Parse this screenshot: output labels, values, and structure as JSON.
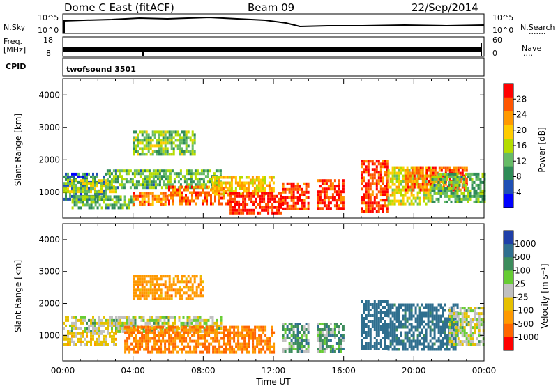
{
  "header": {
    "station": "Dome C East (fitACF)",
    "beam": "Beam 09",
    "date": "22/Sep/2014"
  },
  "status_panels": {
    "nsky": {
      "label": "N.Sky",
      "top_tick": "10^5",
      "bottom_tick": "10^0"
    },
    "nsearch": {
      "label": "N.Search",
      "top_tick": "10^5",
      "bottom_tick": "10^0"
    },
    "freq": {
      "label_1": "Freq.",
      "label_2": "[MHz]",
      "top_tick": "18",
      "bottom_tick": "8"
    },
    "nave": {
      "label": "Nave",
      "top_tick": "60",
      "bottom_tick": "0"
    },
    "cpid": {
      "label": "CPID",
      "value": "twofsound 3501"
    }
  },
  "colors": {
    "power_scale": [
      "#0000ff",
      "#1e4fb4",
      "#2e8b57",
      "#66bb66",
      "#b4dc00",
      "#ffcc00",
      "#ff9900",
      "#ff5500",
      "#ff0000"
    ],
    "velocity_scale": [
      "#1f3fa8",
      "#2f6f8f",
      "#3c8c5c",
      "#66cc33",
      "#c0c0c0",
      "#e6c000",
      "#ff9900",
      "#ff6600",
      "#ff0000"
    ]
  },
  "chart_data": [
    {
      "type": "heatmap",
      "quantity": "power",
      "ylabel": "Slant Range [km]",
      "yticks": [
        1000,
        2000,
        3000,
        4000
      ],
      "ylim": [
        200,
        4500
      ],
      "xlim": [
        0,
        24
      ],
      "colorbar": {
        "label": "Power [dB]",
        "ticks": [
          "4",
          "8",
          "12",
          "16",
          "20",
          "24",
          "28"
        ],
        "range": [
          0,
          32
        ]
      },
      "regions": [
        {
          "t0": 0.0,
          "t1": 2.5,
          "r0": 800,
          "r1": 1600,
          "v": 8
        },
        {
          "t0": 0.0,
          "t1": 3.0,
          "r0": 1000,
          "r1": 1400,
          "v": 16
        },
        {
          "t0": 0.5,
          "t1": 4.0,
          "r0": 500,
          "r1": 900,
          "v": 12
        },
        {
          "t0": 2.5,
          "t1": 9.0,
          "r0": 1100,
          "r1": 1700,
          "v": 12
        },
        {
          "t0": 4.0,
          "t1": 7.5,
          "r0": 2200,
          "r1": 2900,
          "v": 14
        },
        {
          "t0": 4.0,
          "t1": 6.0,
          "r0": 600,
          "r1": 1000,
          "v": 24
        },
        {
          "t0": 6.0,
          "t1": 9.5,
          "r0": 600,
          "r1": 1200,
          "v": 26
        },
        {
          "t0": 8.5,
          "t1": 12.0,
          "r0": 900,
          "r1": 1500,
          "v": 20
        },
        {
          "t0": 9.5,
          "t1": 12.5,
          "r0": 350,
          "r1": 1000,
          "v": 30
        },
        {
          "t0": 12.5,
          "t1": 14.0,
          "r0": 500,
          "r1": 1300,
          "v": 28
        },
        {
          "t0": 14.5,
          "t1": 16.0,
          "r0": 500,
          "r1": 1400,
          "v": 28
        },
        {
          "t0": 17.0,
          "t1": 18.5,
          "r0": 400,
          "r1": 2000,
          "v": 28
        },
        {
          "t0": 18.5,
          "t1": 21.0,
          "r0": 600,
          "r1": 1800,
          "v": 18
        },
        {
          "t0": 19.5,
          "t1": 23.0,
          "r0": 1100,
          "r1": 1800,
          "v": 26
        },
        {
          "t0": 21.0,
          "t1": 24.0,
          "r0": 700,
          "r1": 1600,
          "v": 12
        }
      ]
    },
    {
      "type": "heatmap",
      "quantity": "velocity",
      "ylabel": "Slant Range [km]",
      "xlabel": "Time UT",
      "xticks": [
        "00:00",
        "04:00",
        "08:00",
        "12:00",
        "16:00",
        "20:00",
        "00:00"
      ],
      "yticks": [
        1000,
        2000,
        3000,
        4000
      ],
      "ylim": [
        200,
        4500
      ],
      "xlim": [
        0,
        24
      ],
      "colorbar": {
        "label": "Velocity [m s⁻¹]",
        "ticks": [
          "1000",
          "500",
          "100",
          "25",
          "-25",
          "-100",
          "-500",
          "-1000"
        ]
      },
      "regions": [
        {
          "t0": 0.0,
          "t1": 4.0,
          "r0": 1100,
          "r1": 1600,
          "v": 0
        },
        {
          "t0": 0.0,
          "t1": 3.0,
          "r0": 700,
          "r1": 1100,
          "v": -60
        },
        {
          "t0": 3.0,
          "t1": 9.0,
          "r0": 1100,
          "r1": 1600,
          "v": 0
        },
        {
          "t0": 4.0,
          "t1": 8.0,
          "r0": 2200,
          "r1": 2900,
          "v": -150
        },
        {
          "t0": 3.5,
          "t1": 12.0,
          "r0": 500,
          "r1": 1300,
          "v": -200
        },
        {
          "t0": 12.5,
          "t1": 14.0,
          "r0": 500,
          "r1": 1400,
          "v": 60
        },
        {
          "t0": 14.5,
          "t1": 16.0,
          "r0": 500,
          "r1": 1400,
          "v": 60
        },
        {
          "t0": 17.0,
          "t1": 18.5,
          "r0": 600,
          "r1": 2100,
          "v": 300
        },
        {
          "t0": 18.5,
          "t1": 22.5,
          "r0": 600,
          "r1": 2000,
          "v": 150
        },
        {
          "t0": 22.0,
          "t1": 24.0,
          "r0": 700,
          "r1": 1900,
          "v": 0
        }
      ]
    }
  ]
}
